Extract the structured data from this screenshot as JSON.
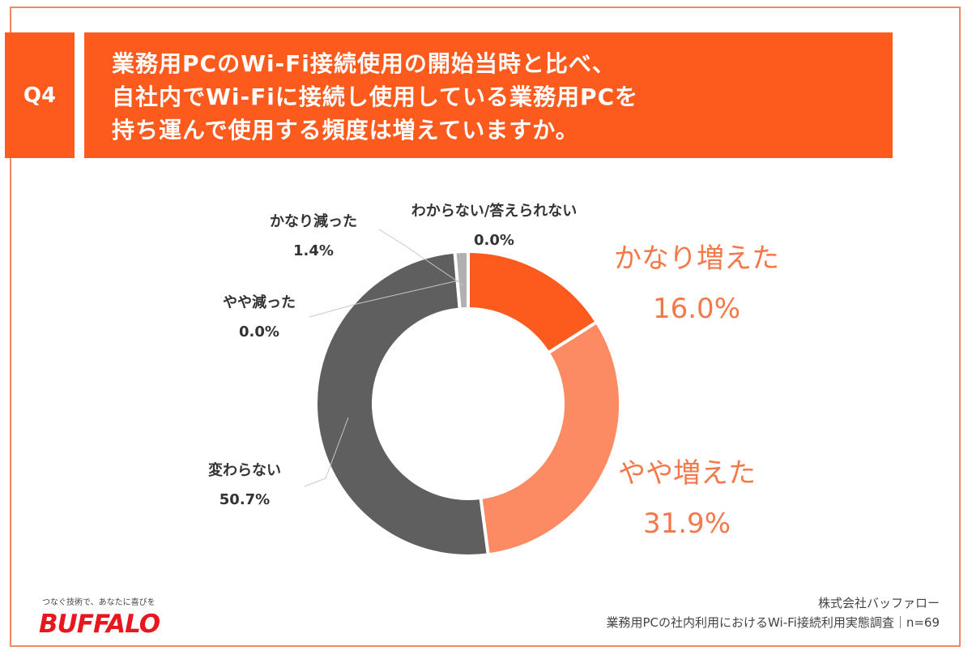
{
  "question": {
    "tag": "Q4",
    "lines": [
      "業務用PCのWi-Fi接続使用の開始当時と比べ、",
      "自社内でWi-Fiに接続し使用している業務用PCを",
      "持ち運んで使用する頻度は増えていますか。"
    ]
  },
  "chart_data": {
    "type": "pie",
    "donut": true,
    "slices": [
      {
        "label": "かなり増えた",
        "value": 16.0,
        "display": "16.0%",
        "color": "#fd5a1e"
      },
      {
        "label": "やや増えた",
        "value": 31.9,
        "display": "31.9%",
        "color": "#fc8a63"
      },
      {
        "label": "変わらない",
        "value": 50.7,
        "display": "50.7%",
        "color": "#5f5f5f"
      },
      {
        "label": "やや減った",
        "value": 0.0,
        "display": "0.0%",
        "color": "#8a8a8a"
      },
      {
        "label": "かなり減った",
        "value": 1.4,
        "display": "1.4%",
        "color": "#b0b0b0"
      },
      {
        "label": "わからない/答えられない",
        "value": 0.0,
        "display": "0.0%",
        "color": "#d0d0d0"
      }
    ]
  },
  "brand": {
    "tagline": "つなぐ技術で、あなたに喜びを",
    "logo": "BUFFALO"
  },
  "footer": {
    "company": "株式会社バッファロー",
    "source": "業務用PCの社内利用におけるWi-Fi接続利用実態調査｜n=69"
  }
}
